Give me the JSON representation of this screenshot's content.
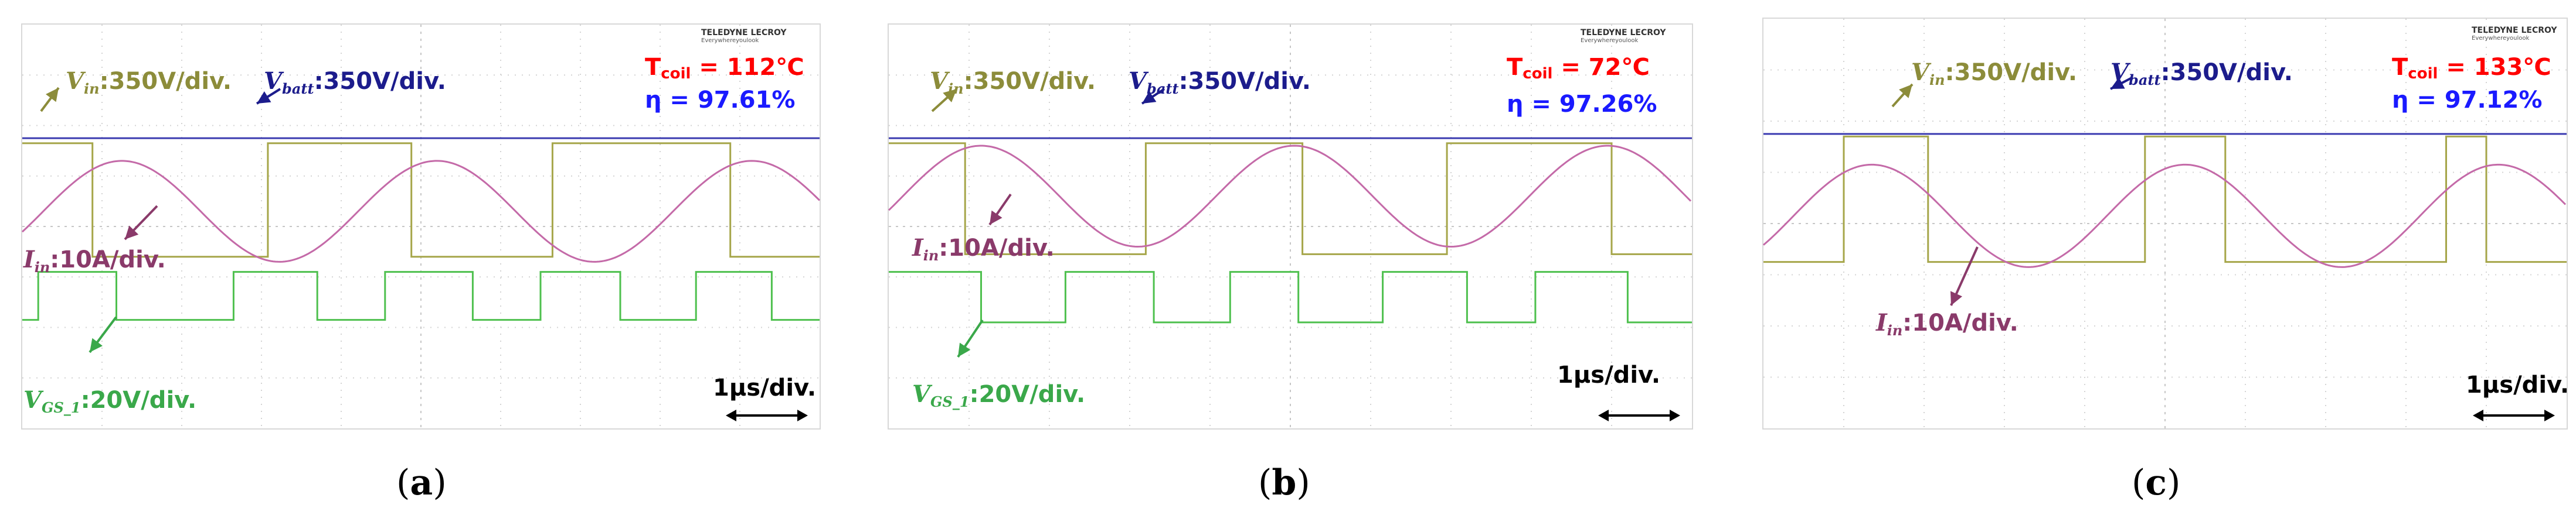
{
  "colors": {
    "vin": "#a6a64a",
    "vbatt": "#3b3bb0",
    "iin": "#c46aa8",
    "vgs": "#4ec04e",
    "vin_label": "#8c8c3a",
    "vbatt_label": "#1c1c8c",
    "iin_label": "#8a3a6a",
    "vgs_label": "#3aa84a",
    "tcoil": "#ff0000",
    "eta": "#1a1aff",
    "grid": "#d4d4d4"
  },
  "brand": {
    "name": "TELEDYNE LECROY",
    "tagline": "Everywhereyoulook"
  },
  "labels": {
    "vin": {
      "sym": "V",
      "sub": "in",
      "val": ":350V/div."
    },
    "vbatt": {
      "sym": "V",
      "sub": "batt",
      "val": ":350V/div."
    },
    "iin": {
      "sym": "I",
      "sub": "in",
      "val": ":10A/div."
    },
    "vgs": {
      "sym": "V",
      "sub": "GS_1",
      "val": ":20V/div."
    },
    "tcoil": {
      "sym": "T",
      "sub": "coil"
    },
    "eta_sym": "η",
    "timebase": "1μs/div."
  },
  "chart_data": [
    {
      "type": "line",
      "caption_open": "(",
      "caption_id": "a",
      "caption_close": ")",
      "tcoil": "= 112℃",
      "eta": "= 97.61%",
      "series": [
        {
          "key": "vbatt",
          "level_div": 3.35
        },
        {
          "key": "vin",
          "low_div": 1.0,
          "high_div": 3.25,
          "high_intervals": [
            [
              0.0,
              0.88
            ],
            [
              3.08,
              4.88
            ],
            [
              6.65,
              8.88
            ]
          ]
        },
        {
          "key": "iin",
          "center_div": 1.9,
          "amp_div": 1.0,
          "period_div": 3.95,
          "phase_div": 1.25
        },
        {
          "key": "vgs",
          "low_div": -0.25,
          "high_div": 0.7,
          "high_intervals": [
            [
              0.2,
              1.18
            ],
            [
              2.65,
              3.7
            ],
            [
              4.55,
              5.65
            ],
            [
              6.5,
              7.5
            ],
            [
              8.45,
              9.4
            ]
          ]
        }
      ]
    },
    {
      "type": "line",
      "caption_open": "(",
      "caption_id": "b",
      "caption_close": ")",
      "tcoil": "= 72℃",
      "eta": "= 97.26%",
      "series": [
        {
          "key": "vbatt",
          "level_div": 3.35
        },
        {
          "key": "vin",
          "low_div": 1.05,
          "high_div": 3.25,
          "high_intervals": [
            [
              0.0,
              0.95
            ],
            [
              3.2,
              5.15
            ],
            [
              6.95,
              9.0
            ]
          ]
        },
        {
          "key": "iin",
          "center_div": 2.2,
          "amp_div": 1.0,
          "period_div": 3.9,
          "phase_div": 1.15
        },
        {
          "key": "vgs",
          "low_div": -0.3,
          "high_div": 0.7,
          "high_intervals": [
            [
              0.0,
              1.15
            ],
            [
              2.2,
              3.3
            ],
            [
              4.25,
              5.1
            ],
            [
              6.15,
              7.2
            ],
            [
              8.05,
              9.2
            ]
          ]
        }
      ]
    },
    {
      "type": "line",
      "caption_open": "(",
      "caption_id": "c",
      "caption_close": ")",
      "tcoil": "= 133℃",
      "eta": "= 97.12%",
      "series": [
        {
          "key": "vbatt",
          "level_div": 3.35
        },
        {
          "key": "vin",
          "low_div": 0.85,
          "high_div": 3.3,
          "high_intervals": [
            [
              1.0,
              2.05
            ],
            [
              4.75,
              5.75
            ],
            [
              8.5,
              9.0
            ]
          ]
        },
        {
          "key": "iin",
          "center_div": 1.75,
          "amp_div": 1.0,
          "period_div": 3.9,
          "phase_div": 1.35
        }
      ]
    }
  ]
}
